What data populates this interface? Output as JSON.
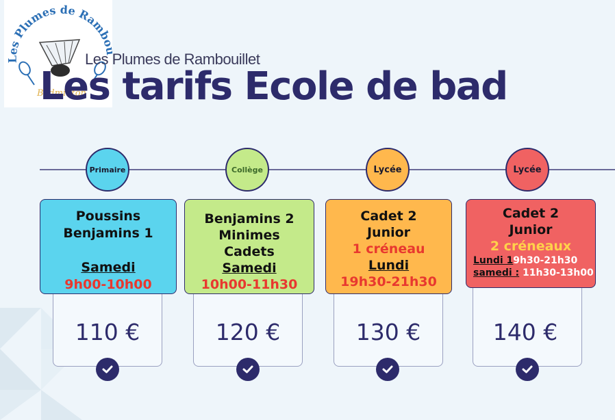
{
  "logo": {
    "text": "Les Plumes de Rambouillet",
    "sub": "Badminton"
  },
  "header": {
    "subtitle": "Les Plumes de Rambouillet",
    "title": "Les tarifs Ecole de bad"
  },
  "colors": {
    "primary": "#2d2b6b",
    "red": "#e8382f",
    "yellow": "#ffd24a"
  },
  "tiers": [
    {
      "node": "Primaire",
      "node_color": "#5bd4ee",
      "card_color": "#5bd4ee",
      "lines": [
        "Poussins",
        "Benjamins 1"
      ],
      "day": "Samedi",
      "time": "9h00-10h00",
      "price": "110 €"
    },
    {
      "node": "Collège",
      "node_color": "#c4ea8a",
      "card_color": "#c4ea8a",
      "lines": [
        "Benjamins 2",
        "Minimes",
        "Cadets"
      ],
      "day": "Samedi",
      "time": "10h00-11h30",
      "price": "120 €"
    },
    {
      "node": "Lycée",
      "node_color": "#ffb84d",
      "card_color": "#ffb84d",
      "lines": [
        "Cadet 2",
        "Junior"
      ],
      "slots": "1 créneau",
      "day": "Lundi",
      "time": "19h30-21h30",
      "price": "130 €"
    },
    {
      "node": "Lycée",
      "node_color": "#f06262",
      "card_color": "#f06262",
      "lines": [
        "Cadet 2",
        "Junior"
      ],
      "slots": "2 créneaux",
      "row1_day": "Lundi 1",
      "row1_time": "9h30-21h30",
      "row2_day": "samedi  :",
      "row2_time": " 11h30-13h00",
      "price": "140 €"
    }
  ],
  "icons": [
    "checkmark-icon"
  ]
}
